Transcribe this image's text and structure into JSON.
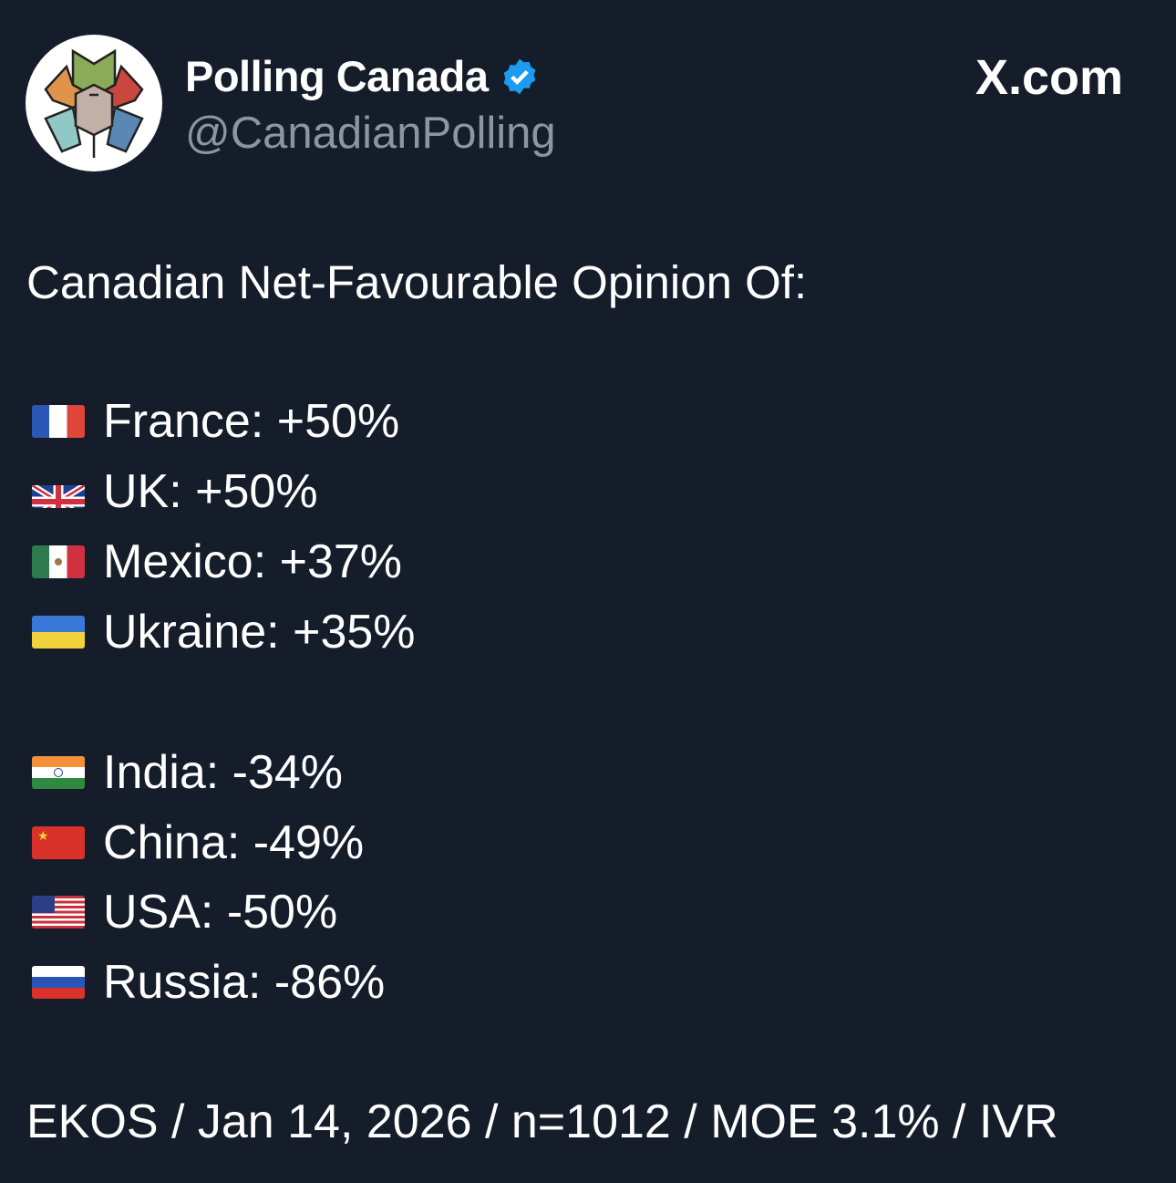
{
  "header": {
    "name": "Polling Canada",
    "handle": "@CanadianPolling",
    "site": "X.com",
    "verified_icon": "verified-badge-icon",
    "verified_color": "#1d9bf0"
  },
  "post": {
    "title": "Canadian Net-Favourable Opinion Of:",
    "favourable": [
      {
        "flag": "france",
        "text": "France: +50%"
      },
      {
        "flag": "uk",
        "text": "UK: +50%"
      },
      {
        "flag": "mexico",
        "text": "Mexico: +37%"
      },
      {
        "flag": "ukraine",
        "text": "Ukraine: +35%"
      }
    ],
    "unfavourable": [
      {
        "flag": "india",
        "text": "India: -34%"
      },
      {
        "flag": "china",
        "text": "China: -49%"
      },
      {
        "flag": "usa",
        "text": "USA: -50%"
      },
      {
        "flag": "russia",
        "text": "Russia: -86%"
      }
    ],
    "footer": "EKOS / Jan 14, 2026 / n=1012 / MOE 3.1% / IVR"
  }
}
